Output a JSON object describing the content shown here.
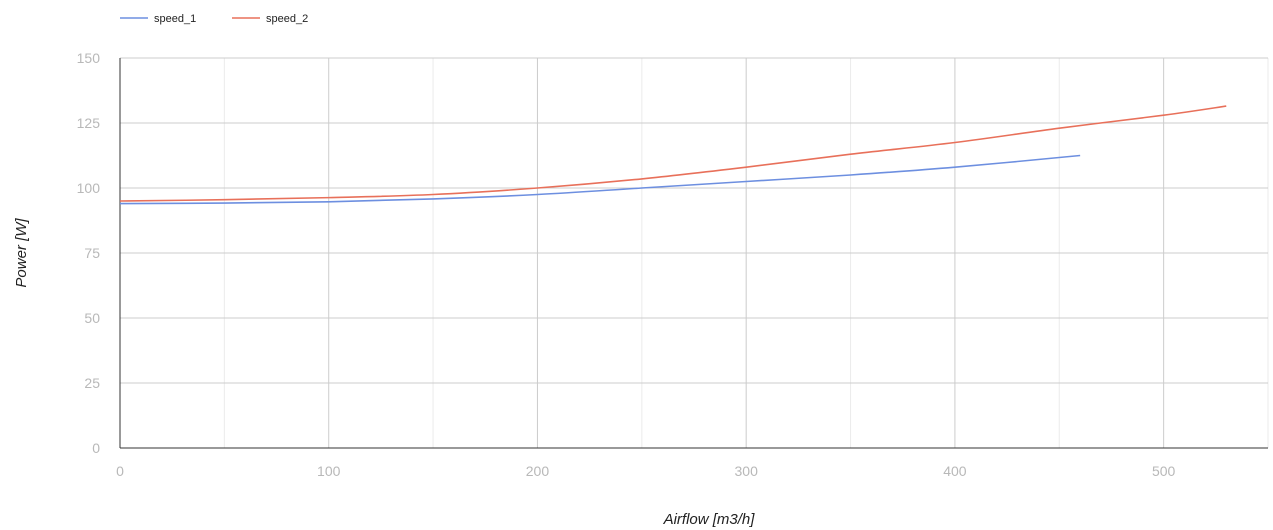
{
  "chart_data": {
    "type": "line",
    "title": "",
    "xlabel": "Airflow [m3/h]",
    "ylabel": "Power [W]",
    "xlim": [
      0,
      550
    ],
    "ylim": [
      0,
      150
    ],
    "x_ticks": [
      0,
      100,
      200,
      300,
      400,
      500
    ],
    "y_ticks": [
      0,
      25,
      50,
      75,
      100,
      125,
      150
    ],
    "grid": true,
    "legend_position": "top-left",
    "series": [
      {
        "name": "speed_1",
        "color": "#6d8fe0",
        "x": [
          0,
          50,
          100,
          150,
          200,
          250,
          300,
          350,
          400,
          460
        ],
        "y": [
          94,
          94.2,
          94.7,
          95.8,
          97.5,
          100,
          102.5,
          105,
          108,
          112.5
        ]
      },
      {
        "name": "speed_2",
        "color": "#e8705a",
        "x": [
          0,
          50,
          100,
          150,
          200,
          250,
          300,
          350,
          400,
          450,
          500,
          530
        ],
        "y": [
          95,
          95.5,
          96.3,
          97.5,
          100,
          103.5,
          108,
          113,
          117.5,
          123,
          128,
          131.5
        ]
      }
    ]
  }
}
